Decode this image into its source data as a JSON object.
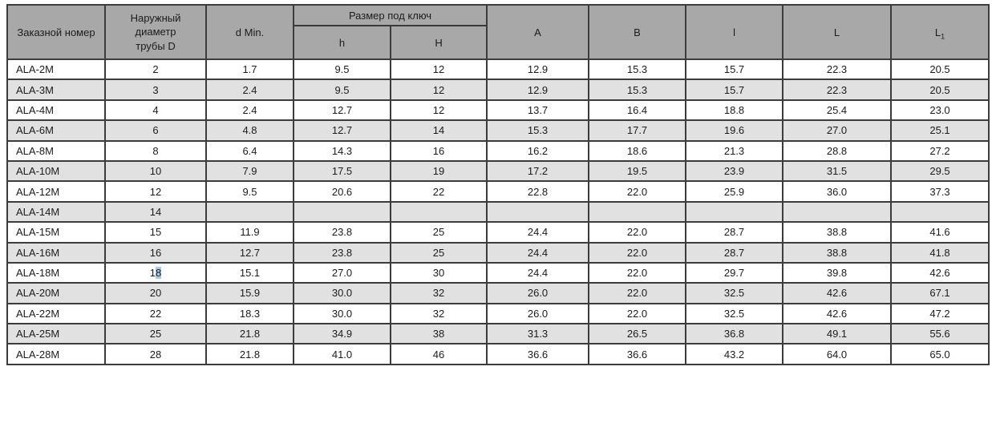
{
  "table": {
    "columns": {
      "order_number": "Заказной номер",
      "outer_diameter": "Наружный диаметр трубы D",
      "d_min": "d Min.",
      "wrench_group": "Размер под ключ",
      "h": "h",
      "H": "H",
      "A": "A",
      "B": "B",
      "l": "l",
      "L": "L",
      "L1_base": "L",
      "L1_sub": "1"
    },
    "rows": [
      {
        "name": "ALA-2M",
        "values": [
          "2",
          "1.7",
          "9.5",
          "12",
          "12.9",
          "15.3",
          "15.7",
          "22.3",
          "20.5"
        ]
      },
      {
        "name": "ALA-3M",
        "values": [
          "3",
          "2.4",
          "9.5",
          "12",
          "12.9",
          "15.3",
          "15.7",
          "22.3",
          "20.5"
        ]
      },
      {
        "name": "ALA-4M",
        "values": [
          "4",
          "2.4",
          "12.7",
          "12",
          "13.7",
          "16.4",
          "18.8",
          "25.4",
          "23.0"
        ]
      },
      {
        "name": "ALA-6M",
        "values": [
          "6",
          "4.8",
          "12.7",
          "14",
          "15.3",
          "17.7",
          "19.6",
          "27.0",
          "25.1"
        ]
      },
      {
        "name": "ALA-8M",
        "values": [
          "8",
          "6.4",
          "14.3",
          "16",
          "16.2",
          "18.6",
          "21.3",
          "28.8",
          "27.2"
        ]
      },
      {
        "name": "ALA-10M",
        "values": [
          "10",
          "7.9",
          "17.5",
          "19",
          "17.2",
          "19.5",
          "23.9",
          "31.5",
          "29.5"
        ]
      },
      {
        "name": "ALA-12M",
        "values": [
          "12",
          "9.5",
          "20.6",
          "22",
          "22.8",
          "22.0",
          "25.9",
          "36.0",
          "37.3"
        ]
      },
      {
        "name": "ALA-14M",
        "values": [
          "14",
          "",
          "",
          "",
          "",
          "",
          "",
          "",
          ""
        ]
      },
      {
        "name": "ALA-15M",
        "values": [
          "15",
          "11.9",
          "23.8",
          "25",
          "24.4",
          "22.0",
          "28.7",
          "38.8",
          "41.6"
        ]
      },
      {
        "name": "ALA-16M",
        "values": [
          "16",
          "12.7",
          "23.8",
          "25",
          "24.4",
          "22.0",
          "28.7",
          "38.8",
          "41.8"
        ]
      },
      {
        "name": "ALA-18M",
        "values": [
          "18",
          "15.1",
          "27.0",
          "30",
          "24.4",
          "22.0",
          "29.7",
          "39.8",
          "42.6"
        ],
        "highlight": {
          "col": 0,
          "start": 1,
          "end": 2
        }
      },
      {
        "name": "ALA-20M",
        "values": [
          "20",
          "15.9",
          "30.0",
          "32",
          "26.0",
          "22.0",
          "32.5",
          "42.6",
          "67.1"
        ]
      },
      {
        "name": "ALA-22M",
        "values": [
          "22",
          "18.3",
          "30.0",
          "32",
          "26.0",
          "22.0",
          "32.5",
          "42.6",
          "47.2"
        ]
      },
      {
        "name": "ALA-25M",
        "values": [
          "25",
          "21.8",
          "34.9",
          "38",
          "31.3",
          "26.5",
          "36.8",
          "49.1",
          "55.6"
        ]
      },
      {
        "name": "ALA-28M",
        "values": [
          "28",
          "21.8",
          "41.0",
          "46",
          "36.6",
          "36.6",
          "43.2",
          "64.0",
          "65.0"
        ]
      }
    ]
  },
  "colors": {
    "header_bg": "#a8a8a8",
    "stripe_bg": "#e1e1e1",
    "border": "#3c3c3c",
    "text_highlight": "#a9cbe9"
  }
}
